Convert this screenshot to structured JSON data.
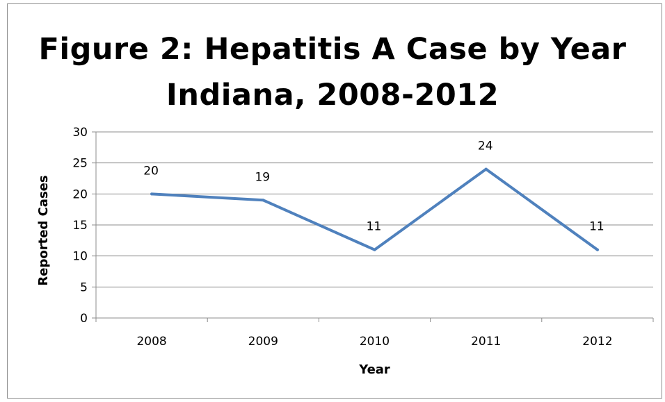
{
  "chart_data": {
    "type": "line",
    "title_lines": [
      "Figure 2: Hepatitis A Case by Year",
      "Indiana, 2008-2012"
    ],
    "xlabel": "Year",
    "ylabel": "Reported Cases",
    "categories": [
      "2008",
      "2009",
      "2010",
      "2011",
      "2012"
    ],
    "series": [
      {
        "values": [
          20,
          19,
          11,
          24,
          11
        ],
        "color": "#4f81bd"
      }
    ],
    "ylim": [
      0,
      30
    ],
    "yticks": [
      0,
      5,
      10,
      15,
      20,
      25,
      30
    ],
    "grid": true,
    "data_labels": true,
    "legend": "none"
  }
}
